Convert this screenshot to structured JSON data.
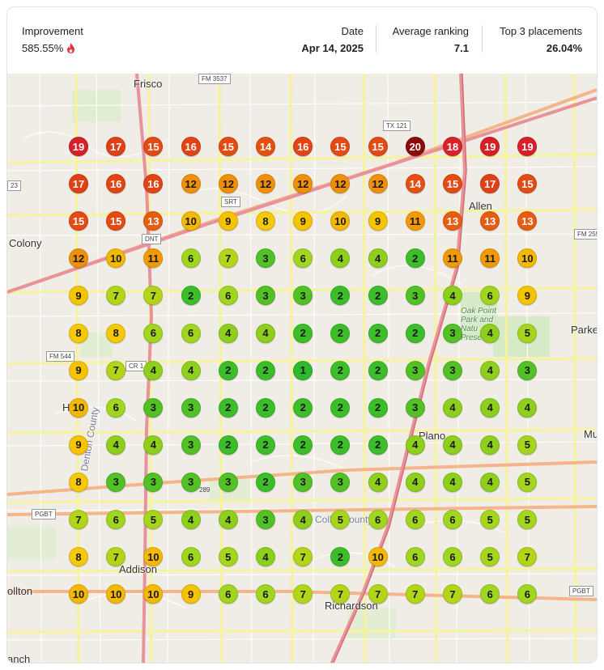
{
  "stats": {
    "improvement_label": "Improvement",
    "improvement_value": "585.55%",
    "date_label": "Date",
    "date_value": "Apr 14, 2025",
    "avg_label": "Average ranking",
    "avg_value": "7.1",
    "top3_label": "Top 3 placements",
    "top3_value": "26.04%"
  },
  "colors": {
    "rank_1": "#2db82d",
    "rank_2": "#3cbe2a",
    "rank_3": "#52c126",
    "rank_4": "#8ecf1e",
    "rank_5": "#a5d51e",
    "rank_6": "#a0d520",
    "rank_7": "#b2d51a",
    "rank_8": "#f5c90a",
    "rank_9": "#f6c300",
    "rank_10": "#f4b800",
    "rank_11": "#f29a05",
    "rank_12": "#f0900a",
    "rank_13": "#e85c10",
    "rank_14": "#e64f12",
    "rank_15": "#e44a14",
    "rank_16": "#e24414",
    "rank_17": "#e04016",
    "rank_18": "#d9222a",
    "rank_19": "#d61f26",
    "rank_20": "#8b0a0a",
    "flame": "#e0323c"
  },
  "map": {
    "places": [
      {
        "id": "frisco",
        "label": "Frisco"
      },
      {
        "id": "allen",
        "label": "Allen"
      },
      {
        "id": "colony",
        "label": "Colony"
      },
      {
        "id": "parker",
        "label": "Parker"
      },
      {
        "id": "plano",
        "label": "Plano"
      },
      {
        "id": "addison",
        "label": "Addison"
      },
      {
        "id": "richardson",
        "label": "Richardson"
      },
      {
        "id": "carrollton",
        "label": "ollton"
      },
      {
        "id": "murphy",
        "label": "Mu"
      },
      {
        "id": "branch",
        "label": "anch"
      },
      {
        "id": "hebron",
        "label": "H"
      },
      {
        "id": "collin-county",
        "label": "Collin County"
      },
      {
        "id": "denton-county",
        "label": "Denton County"
      },
      {
        "id": "oak-point",
        "label": "Oak Point Park and Natu Prese"
      }
    ],
    "highways": [
      {
        "id": "fm3537",
        "label": "FM 3537"
      },
      {
        "id": "tx121",
        "label": "TX 121"
      },
      {
        "id": "srt",
        "label": "SRT"
      },
      {
        "id": "dnt",
        "label": "DNT"
      },
      {
        "id": "fm2551",
        "label": "FM 255"
      },
      {
        "id": "fm544",
        "label": "FM 544"
      },
      {
        "id": "cr1",
        "label": "CR 1"
      },
      {
        "id": "pgbt-w",
        "label": "PGBT"
      },
      {
        "id": "pgbt-e",
        "label": "PGBT"
      },
      {
        "id": "r23",
        "label": "23"
      },
      {
        "id": "r289",
        "label": "289"
      }
    ]
  },
  "grid": {
    "rows": [
      [
        19,
        17,
        15,
        16,
        15,
        14,
        16,
        15,
        15,
        20,
        18,
        19,
        19
      ],
      [
        17,
        16,
        16,
        12,
        12,
        12,
        12,
        12,
        12,
        14,
        15,
        17,
        15
      ],
      [
        15,
        15,
        13,
        10,
        9,
        8,
        9,
        10,
        9,
        11,
        13,
        13,
        13
      ],
      [
        12,
        10,
        11,
        6,
        7,
        3,
        6,
        4,
        4,
        2,
        11,
        11,
        10
      ],
      [
        9,
        7,
        7,
        2,
        6,
        3,
        3,
        2,
        2,
        3,
        4,
        6,
        9
      ],
      [
        8,
        8,
        6,
        6,
        4,
        4,
        2,
        2,
        2,
        2,
        3,
        4,
        5
      ],
      [
        9,
        7,
        4,
        4,
        2,
        2,
        1,
        2,
        2,
        3,
        3,
        4,
        3
      ],
      [
        10,
        6,
        3,
        3,
        2,
        2,
        2,
        2,
        2,
        3,
        4,
        4,
        4
      ],
      [
        9,
        4,
        4,
        3,
        2,
        2,
        2,
        2,
        2,
        4,
        4,
        4,
        5
      ],
      [
        8,
        3,
        3,
        3,
        3,
        2,
        3,
        3,
        4,
        4,
        4,
        4,
        5
      ],
      [
        7,
        6,
        5,
        4,
        4,
        3,
        4,
        5,
        6,
        6,
        6,
        5,
        5
      ],
      [
        8,
        7,
        10,
        6,
        5,
        4,
        7,
        2,
        10,
        6,
        6,
        5,
        7
      ],
      [
        10,
        10,
        10,
        9,
        6,
        6,
        7,
        7,
        7,
        7,
        7,
        6,
        6
      ]
    ]
  }
}
